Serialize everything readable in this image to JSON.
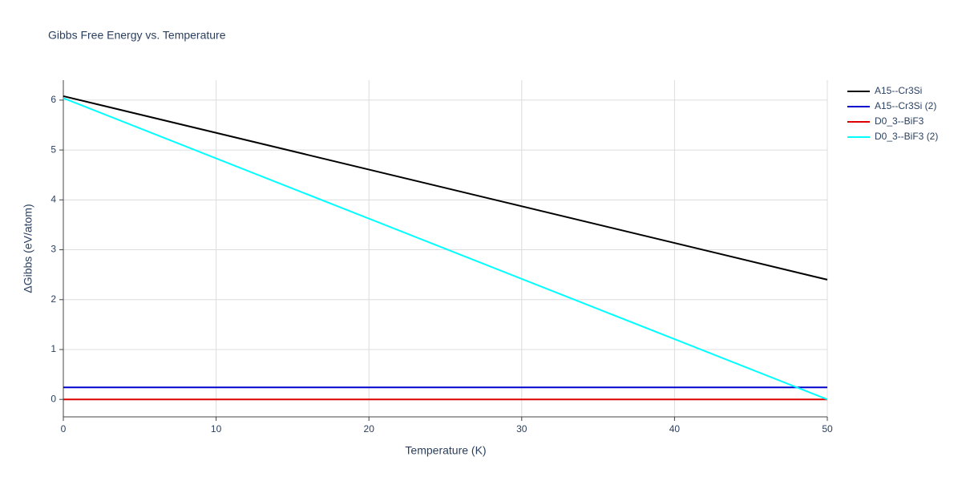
{
  "chart_data": {
    "type": "line",
    "title": "Gibbs Free Energy vs. Temperature",
    "x_label": "Temperature (K)",
    "y_label": "ΔGibbs (eV/atom)",
    "x": [
      0,
      50
    ],
    "series": [
      {
        "name": "A15--Cr3Si",
        "color": "#000000",
        "values": [
          6.08,
          2.4
        ]
      },
      {
        "name": "A15--Cr3Si (2)",
        "color": "#0000cc",
        "values": [
          0.24,
          0.24
        ]
      },
      {
        "name": "D0_3--BiF3",
        "color": "#dd0000",
        "values": [
          0,
          0
        ]
      },
      {
        "name": "D0_3--BiF3 (2)",
        "color": "#00ffff",
        "values": [
          6.04,
          0
        ]
      }
    ],
    "xlim": [
      0,
      50
    ],
    "xticks": [
      0,
      10,
      20,
      30,
      40,
      50
    ],
    "ylim": [
      -0.35,
      6.4
    ],
    "yticks": [
      0,
      1,
      2,
      3,
      4,
      5,
      6
    ],
    "grid": true,
    "legend": "top-right"
  }
}
